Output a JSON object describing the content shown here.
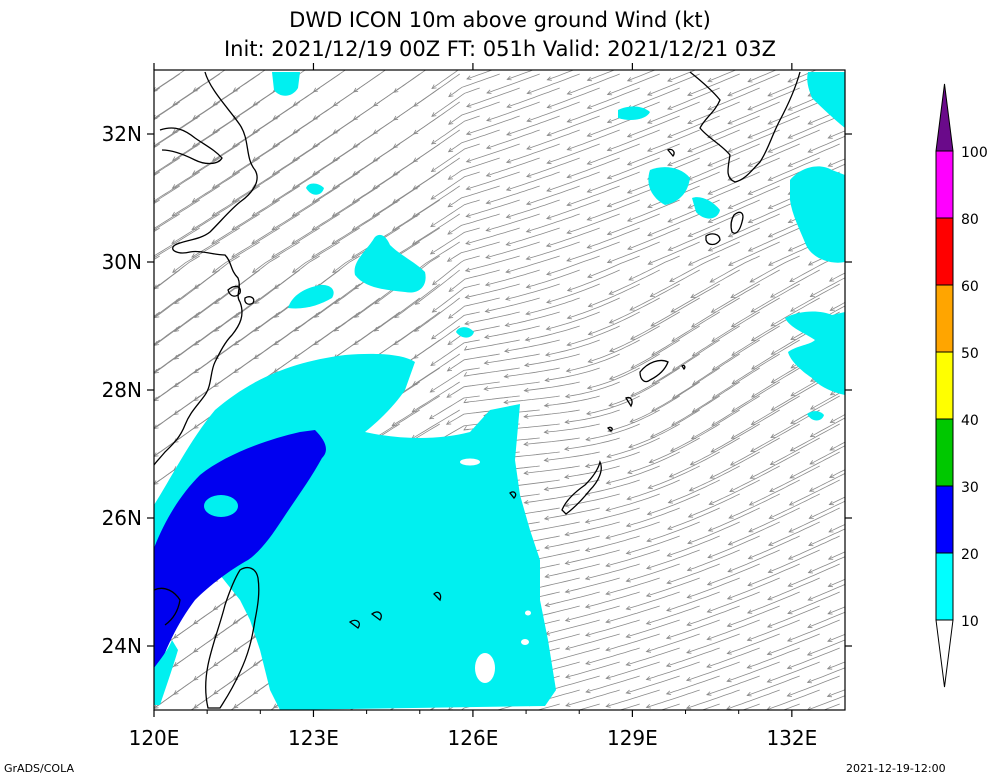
{
  "title": {
    "line1": "DWD ICON 10m above ground Wind (kt)",
    "line2": "Init: 2021/12/19 00Z  FT: 051h  Valid: 2021/12/21 03Z"
  },
  "axes": {
    "x_ticks": [
      "120E",
      "123E",
      "126E",
      "129E",
      "132E"
    ],
    "y_ticks": [
      "24N",
      "26N",
      "28N",
      "30N",
      "32N"
    ],
    "lon_range": [
      120,
      133
    ],
    "lat_range": [
      23,
      33
    ]
  },
  "colorbar": {
    "labels": [
      "10",
      "20",
      "30",
      "40",
      "50",
      "60",
      "80",
      "100"
    ],
    "colors": [
      "#00ffff",
      "#0000ff",
      "#00c800",
      "#ffff00",
      "#ffa500",
      "#ff0000",
      "#ff00ff",
      "#6a0a8a"
    ]
  },
  "colors": {
    "shade_10_20": "#00f0f0",
    "shade_20_30": "#0000f0",
    "streamline": "#888888",
    "coastline": "#000000"
  },
  "footer": {
    "left": "GrADS/COLA",
    "right": "2021-12-19-12:00"
  }
}
